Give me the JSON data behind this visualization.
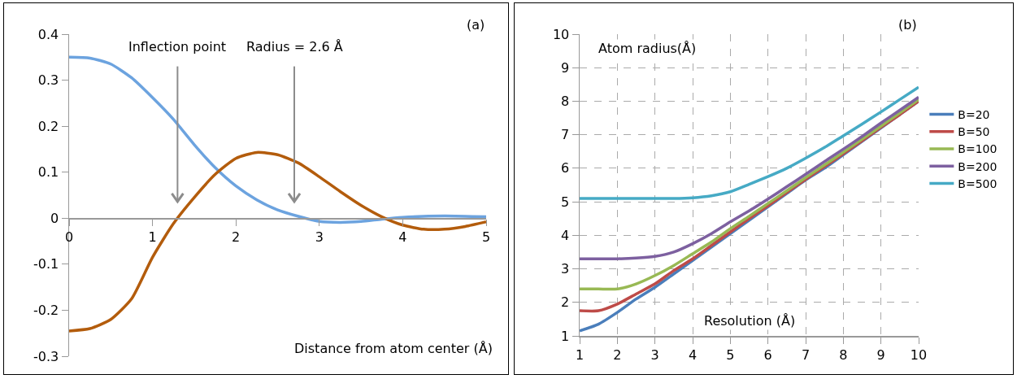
{
  "chart_data": [
    {
      "type": "line",
      "xlabel": "Distance from atom center (Å)",
      "xlim": [
        0,
        5
      ],
      "xticks": [
        0,
        1,
        2,
        3,
        4,
        5
      ],
      "ylim": [
        -0.3,
        0.4
      ],
      "yticks": [
        -0.3,
        -0.2,
        -0.1,
        0,
        0.1,
        0.2,
        0.3,
        0.4
      ],
      "grid": false,
      "legend": false,
      "marker": "none",
      "line_style": "solid",
      "series": [
        {
          "color": "#6ca3df",
          "x": [
            0,
            0.25,
            0.5,
            0.75,
            1,
            1.25,
            1.5,
            1.75,
            2,
            2.25,
            2.5,
            2.75,
            3,
            3.25,
            3.5,
            3.75,
            4,
            4.5,
            5
          ],
          "values": [
            0.35,
            0.348,
            0.335,
            0.305,
            0.262,
            0.215,
            0.16,
            0.11,
            0.07,
            0.04,
            0.018,
            0.004,
            -0.007,
            -0.009,
            -0.007,
            -0.002,
            0.002,
            0.005,
            0.003
          ]
        },
        {
          "color": "#b35c0c",
          "x": [
            0,
            0.25,
            0.5,
            0.75,
            1,
            1.25,
            1.5,
            1.75,
            2,
            2.25,
            2.5,
            2.75,
            3,
            3.25,
            3.5,
            3.75,
            4,
            4.25,
            4.5,
            4.75,
            5
          ],
          "values": [
            -0.245,
            -0.24,
            -0.22,
            -0.175,
            -0.085,
            -0.012,
            0.045,
            0.095,
            0.13,
            0.143,
            0.138,
            0.12,
            0.09,
            0.058,
            0.028,
            0.003,
            -0.015,
            -0.024,
            -0.024,
            -0.018,
            -0.008
          ]
        }
      ],
      "annotations": [
        "(a)",
        "Inflection point",
        "Radius = 2.6 Å"
      ]
    },
    {
      "type": "line",
      "xlabel": "Resolution (Å)",
      "ylabel": "Atom radius(Å)",
      "xlim": [
        1,
        10
      ],
      "xticks": [
        1,
        2,
        3,
        4,
        5,
        6,
        7,
        8,
        9,
        10
      ],
      "ylim": [
        1,
        10
      ],
      "yticks": [
        1,
        2,
        3,
        4,
        5,
        6,
        7,
        8,
        9,
        10
      ],
      "grid": true,
      "legend": "right",
      "marker": "none",
      "line_style": "solid",
      "x": [
        1,
        1.5,
        2,
        2.5,
        3,
        3.5,
        4,
        4.5,
        5,
        5.5,
        6,
        6.5,
        7,
        7.5,
        8,
        8.5,
        9,
        9.5,
        10
      ],
      "series": [
        {
          "name": "B=20",
          "color": "#4a7ebb",
          "values": [
            1.15,
            1.35,
            1.7,
            2.1,
            2.45,
            2.85,
            3.25,
            3.65,
            4.05,
            4.45,
            4.85,
            5.25,
            5.65,
            6.0,
            6.4,
            6.8,
            7.2,
            7.6,
            8.0
          ]
        },
        {
          "name": "B=50",
          "color": "#be4b48",
          "values": [
            1.75,
            1.75,
            1.95,
            2.25,
            2.55,
            2.95,
            3.3,
            3.7,
            4.1,
            4.5,
            4.88,
            5.28,
            5.67,
            6.05,
            6.43,
            6.82,
            7.22,
            7.6,
            8.0
          ]
        },
        {
          "name": "B=100",
          "color": "#98b954",
          "values": [
            2.4,
            2.4,
            2.4,
            2.55,
            2.8,
            3.1,
            3.45,
            3.8,
            4.2,
            4.57,
            4.95,
            5.33,
            5.72,
            6.1,
            6.48,
            6.87,
            7.26,
            7.65,
            8.05
          ]
        },
        {
          "name": "B=200",
          "color": "#7d60a0",
          "values": [
            3.3,
            3.3,
            3.3,
            3.32,
            3.37,
            3.5,
            3.75,
            4.05,
            4.4,
            4.73,
            5.08,
            5.45,
            5.82,
            6.2,
            6.57,
            6.95,
            7.35,
            7.73,
            8.12
          ]
        },
        {
          "name": "B=500",
          "color": "#46aac5",
          "values": [
            5.1,
            5.1,
            5.1,
            5.1,
            5.1,
            5.1,
            5.12,
            5.18,
            5.3,
            5.52,
            5.75,
            6.0,
            6.3,
            6.62,
            6.97,
            7.32,
            7.68,
            8.05,
            8.42
          ]
        }
      ],
      "annotations": [
        "(b)"
      ]
    }
  ]
}
